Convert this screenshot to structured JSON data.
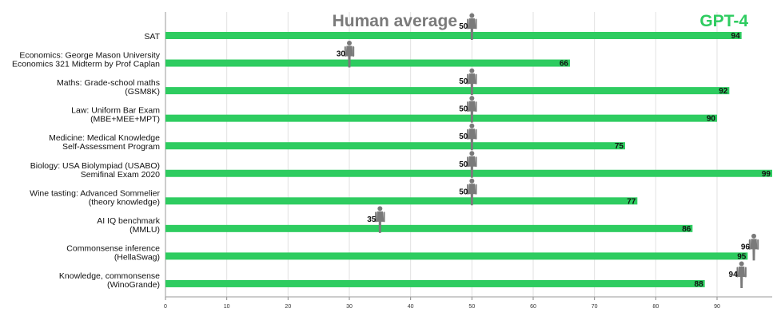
{
  "chart_data": {
    "type": "bar",
    "orientation": "horizontal",
    "title": "",
    "xlabel": "",
    "ylabel": "",
    "xlim": [
      0,
      99
    ],
    "xticks": [
      0,
      10,
      20,
      30,
      40,
      50,
      60,
      70,
      80,
      90
    ],
    "grid": true,
    "legend_position": "top",
    "categories": [
      [
        "SAT"
      ],
      [
        "Economics: George Mason University",
        "Economics 321 Midterm by Prof Caplan"
      ],
      [
        "Maths: Grade-school maths",
        "(GSM8K)"
      ],
      [
        "Law: Uniform Bar Exam",
        "(MBE+MEE+MPT)"
      ],
      [
        "Medicine: Medical Knowledge",
        "Self-Assessment Program"
      ],
      [
        "Biology: USA Biolympiad (USABO)",
        "Semifinal Exam 2020"
      ],
      [
        "Wine tasting: Advanced Sommelier",
        "(theory knowledge)"
      ],
      [
        "AI IQ benchmark",
        "(MMLU)"
      ],
      [
        "Commonsense inference",
        "(HellaSwag)"
      ],
      [
        "Knowledge, commonsense",
        "(WinoGrande)"
      ]
    ],
    "series": [
      {
        "name": "GPT-4",
        "color": "#2ecc60",
        "values": [
          94,
          66,
          92,
          90,
          75,
          99,
          77,
          86,
          95,
          88
        ]
      },
      {
        "name": "Human average",
        "color": "#7a7a7a",
        "marker": "human-figure-icon",
        "values": [
          50,
          30,
          50,
          50,
          50,
          50,
          50,
          35,
          96,
          94
        ]
      }
    ]
  }
}
